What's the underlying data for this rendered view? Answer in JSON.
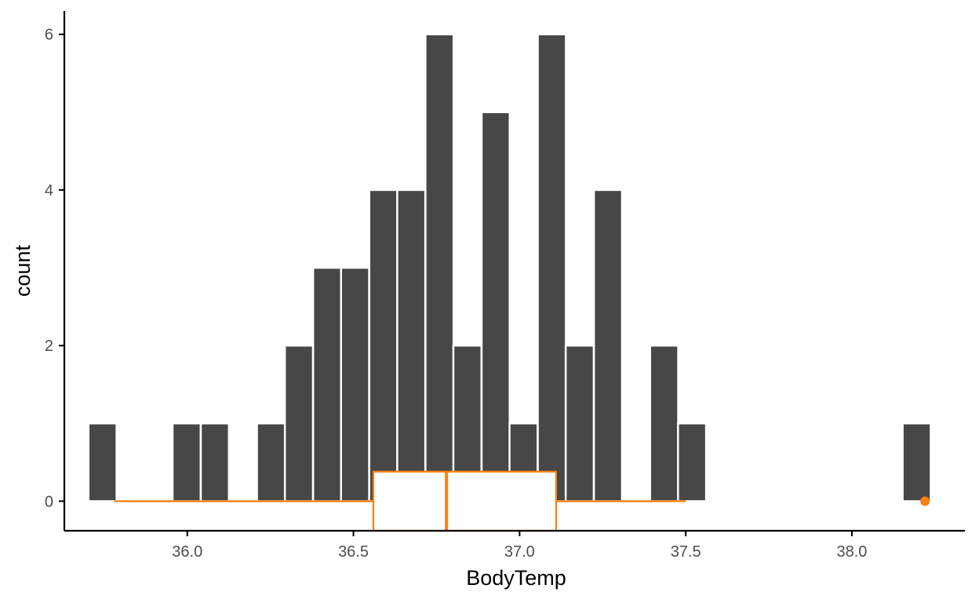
{
  "chart_data": {
    "type": "bar",
    "subtype": "histogram-with-boxplot",
    "title": "",
    "xlabel": "BodyTemp",
    "ylabel": "count",
    "xlim": [
      35.63,
      38.34
    ],
    "ylim": [
      -0.38,
      6.3
    ],
    "x_ticks": [
      {
        "value": 36.0,
        "label": "36.0"
      },
      {
        "value": 36.5,
        "label": "36.5"
      },
      {
        "value": 37.0,
        "label": "37.0"
      },
      {
        "value": 37.5,
        "label": "37.5"
      },
      {
        "value": 38.0,
        "label": "38.0"
      }
    ],
    "y_ticks": [
      {
        "value": 0,
        "label": "0"
      },
      {
        "value": 2,
        "label": "2"
      },
      {
        "value": 4,
        "label": "4"
      },
      {
        "value": 6,
        "label": "6"
      }
    ],
    "grid": false,
    "bin_width": 0.0845,
    "bins": [
      {
        "x": 35.745,
        "count": 1
      },
      {
        "x": 35.829,
        "count": 0
      },
      {
        "x": 35.914,
        "count": 0
      },
      {
        "x": 35.998,
        "count": 1
      },
      {
        "x": 36.083,
        "count": 1
      },
      {
        "x": 36.167,
        "count": 0
      },
      {
        "x": 36.252,
        "count": 1
      },
      {
        "x": 36.336,
        "count": 2
      },
      {
        "x": 36.421,
        "count": 3
      },
      {
        "x": 36.505,
        "count": 3
      },
      {
        "x": 36.59,
        "count": 4
      },
      {
        "x": 36.674,
        "count": 4
      },
      {
        "x": 36.759,
        "count": 6
      },
      {
        "x": 36.843,
        "count": 2
      },
      {
        "x": 36.928,
        "count": 5
      },
      {
        "x": 37.012,
        "count": 1
      },
      {
        "x": 37.097,
        "count": 6
      },
      {
        "x": 37.181,
        "count": 2
      },
      {
        "x": 37.266,
        "count": 4
      },
      {
        "x": 37.35,
        "count": 0
      },
      {
        "x": 37.435,
        "count": 2
      },
      {
        "x": 37.519,
        "count": 1
      },
      {
        "x": 38.195,
        "count": 1
      }
    ],
    "boxplot": {
      "whisker_low": 35.78,
      "q1": 36.56,
      "median": 36.78,
      "q3": 37.11,
      "whisker_high": 37.5,
      "outliers": [
        38.22
      ],
      "center_y": 0,
      "half_height": 0.38
    },
    "colors": {
      "bar_fill": "#474747",
      "bar_stroke": "#ffffff",
      "boxplot": "#ff7f0e",
      "axis": "#000000",
      "tick_text": "#4d4d4d"
    }
  }
}
